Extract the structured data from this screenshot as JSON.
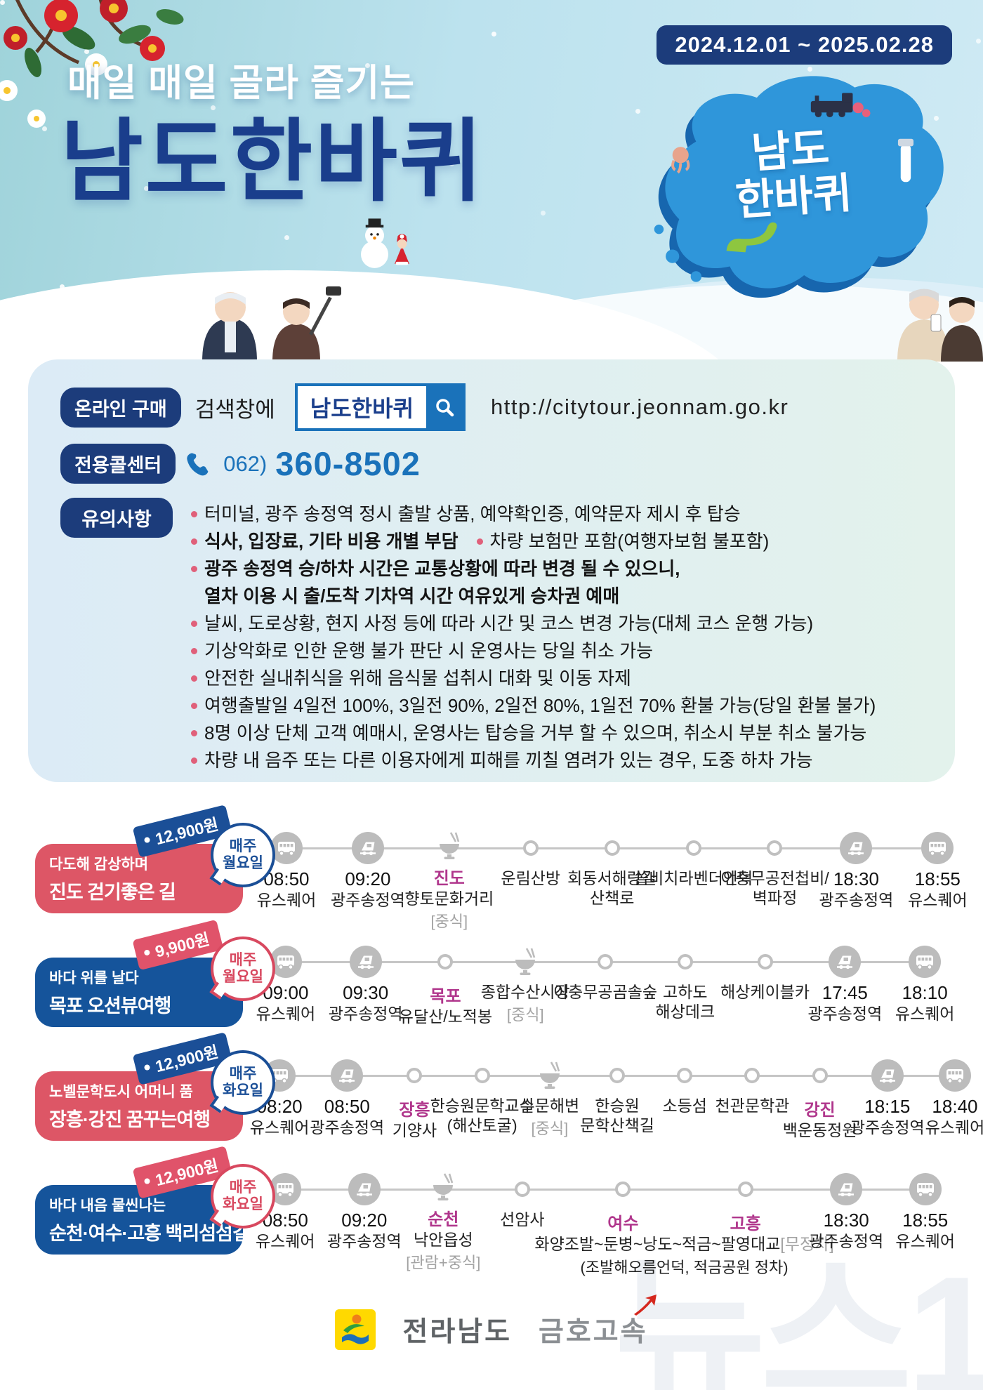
{
  "hero": {
    "date_range": "2024.12.01 ~ 2025.02.28",
    "tagline": "매일 매일 골라 즐기는",
    "title": "남도한바퀴",
    "map_label": "남도\n한바퀴"
  },
  "purchase": {
    "badge": "온라인 구매",
    "search_prefix": "검색창에",
    "search_value": "남도한바퀴",
    "url": "http://citytour.jeonnam.go.kr"
  },
  "callcenter": {
    "badge": "전용콜센터",
    "phone_area": "062)",
    "phone_number": "360-8502"
  },
  "notice": {
    "badge": "유의사항",
    "lines": [
      {
        "bullet": true,
        "bold": false,
        "text": "터미널, 광주 송정역 정시 출발 상품, 예약확인증, 예약문자 제시 후 탑승"
      },
      {
        "bullet": true,
        "bold": true,
        "text": "식사, 입장료, 기타 비용 개별 부담",
        "text2": "차량 보험만 포함(여행자보험 불포함)"
      },
      {
        "bullet": true,
        "bold": true,
        "text": "광주 송정역 승/하차 시간은 교통상황에 따라 변경 될 수 있으니,"
      },
      {
        "bullet": false,
        "bold": true,
        "text": "열차 이용 시 출/도착 기차역 시간  여유있게 승차권 예매"
      },
      {
        "bullet": true,
        "bold": false,
        "text": "날씨, 도로상황, 현지 사정 등에 따라 시간 및 코스 변경 가능(대체 코스 운행 가능)"
      },
      {
        "bullet": true,
        "bold": false,
        "text": "기상악화로 인한 운행 불가 판단 시 운영사는 당일 취소 가능"
      },
      {
        "bullet": true,
        "bold": false,
        "text": "안전한 실내취식을 위해 음식물 섭취시 대화 및 이동 자제"
      },
      {
        "bullet": true,
        "bold": false,
        "text": "여행출발일 4일전 100%, 3일전 90%, 2일전 80%, 1일전 70% 환불 가능(당일 환불 불가)"
      },
      {
        "bullet": true,
        "bold": false,
        "text": "8명 이상 단체 고객 예매시, 운영사는 탑승을 거부 할 수 있으며, 취소시 부분 취소 불가능"
      },
      {
        "bullet": true,
        "bold": false,
        "text": "차량 내 음주 또는 다른 이용자에게 피해를 끼칠 염려가 있는 경우, 도중 하차 가능"
      }
    ]
  },
  "routes": [
    {
      "sub": "다도해 감상하며",
      "title": "진도 걷기좋은 길",
      "box": "red",
      "price": "12,900원",
      "accent": "blue",
      "freq": "매주\n월요일",
      "stops": [
        {
          "icon": "bus",
          "time": "08:50",
          "name": "유스퀘어"
        },
        {
          "icon": "train",
          "time": "09:20",
          "name": "광주송정역"
        },
        {
          "icon": "food",
          "city": "진도",
          "name": "향토문화거리",
          "note": "[중식]"
        },
        {
          "icon": "stop",
          "name": "운림산방"
        },
        {
          "icon": "stop",
          "name": "회동서해랑길\n산책로"
        },
        {
          "icon": "stop",
          "name": "쏠비치라벤더언덕"
        },
        {
          "icon": "stop",
          "name": "이충무공전첩비/\n벽파정"
        },
        {
          "icon": "train",
          "time": "18:30",
          "name": "광주송정역"
        },
        {
          "icon": "bus",
          "time": "18:55",
          "name": "유스퀘어"
        }
      ]
    },
    {
      "sub": "바다 위를 날다",
      "title": "목포 오션뷰여행",
      "box": "blue",
      "price": "9,900원",
      "accent": "red",
      "freq": "매주\n월요일",
      "stops": [
        {
          "icon": "bus",
          "time": "09:00",
          "name": "유스퀘어"
        },
        {
          "icon": "train",
          "time": "09:30",
          "name": "광주송정역"
        },
        {
          "icon": "stop",
          "city": "목포",
          "name": "유달산/노적봉"
        },
        {
          "icon": "food",
          "name": "종합수산시장",
          "note": "[중식]"
        },
        {
          "icon": "stop",
          "name": "이충무공곰솔숲"
        },
        {
          "icon": "stop",
          "name": "고하도\n해상데크"
        },
        {
          "icon": "stop",
          "name": "해상케이블카"
        },
        {
          "icon": "train",
          "time": "17:45",
          "name": "광주송정역"
        },
        {
          "icon": "bus",
          "time": "18:10",
          "name": "유스퀘어"
        }
      ]
    },
    {
      "sub": "노벨문학도시 어머니 품",
      "title": "장흥·강진 꿈꾸는여행",
      "box": "red",
      "price": "12,900원",
      "accent": "blue",
      "freq": "매주\n화요일",
      "stops": [
        {
          "icon": "bus",
          "time": "08:20",
          "name": "유스퀘어"
        },
        {
          "icon": "train",
          "time": "08:50",
          "name": "광주송정역"
        },
        {
          "icon": "stop",
          "city": "장흥",
          "name": "기양사"
        },
        {
          "icon": "stop",
          "name": "한승원문학교실\n(해산토굴)"
        },
        {
          "icon": "food",
          "name": "수문해변",
          "note": "[중식]"
        },
        {
          "icon": "stop",
          "name": "한승원\n문학산책길"
        },
        {
          "icon": "stop",
          "name": "소등섬"
        },
        {
          "icon": "stop",
          "name": "천관문학관"
        },
        {
          "icon": "stop",
          "city": "강진",
          "name": "백운동정원"
        },
        {
          "icon": "train",
          "time": "18:15",
          "name": "광주송정역"
        },
        {
          "icon": "bus",
          "time": "18:40",
          "name": "유스퀘어"
        }
      ]
    },
    {
      "sub": "바다 내음 물씬나는",
      "title": "순천·여수·고흥 백리섬섬길",
      "box": "blue",
      "price": "12,900원",
      "accent": "red",
      "freq": "매주\n화요일",
      "stops": [
        {
          "icon": "bus",
          "time": "08:50",
          "name": "유스퀘어"
        },
        {
          "icon": "train",
          "time": "09:20",
          "name": "광주송정역"
        },
        {
          "icon": "food",
          "city": "순천",
          "name": "낙안읍성",
          "note": "[관람+중식]"
        },
        {
          "icon": "stop",
          "name": "선암사"
        },
        {
          "icon": "span",
          "city": "여수",
          "city2": "고흥",
          "name": "화양조발~둔병~낭도~적금~팔영대교",
          "note_inline": "[무정차]",
          "sub": "(조발해오름언덕, 적금공원 정차)"
        },
        {
          "icon": "train",
          "time": "18:30",
          "name": "광주송정역"
        },
        {
          "icon": "bus",
          "time": "18:55",
          "name": "유스퀘어"
        }
      ]
    }
  ],
  "footer": {
    "org1": "전라남도",
    "org2": "금호고속",
    "watermark": "뉴스1"
  }
}
